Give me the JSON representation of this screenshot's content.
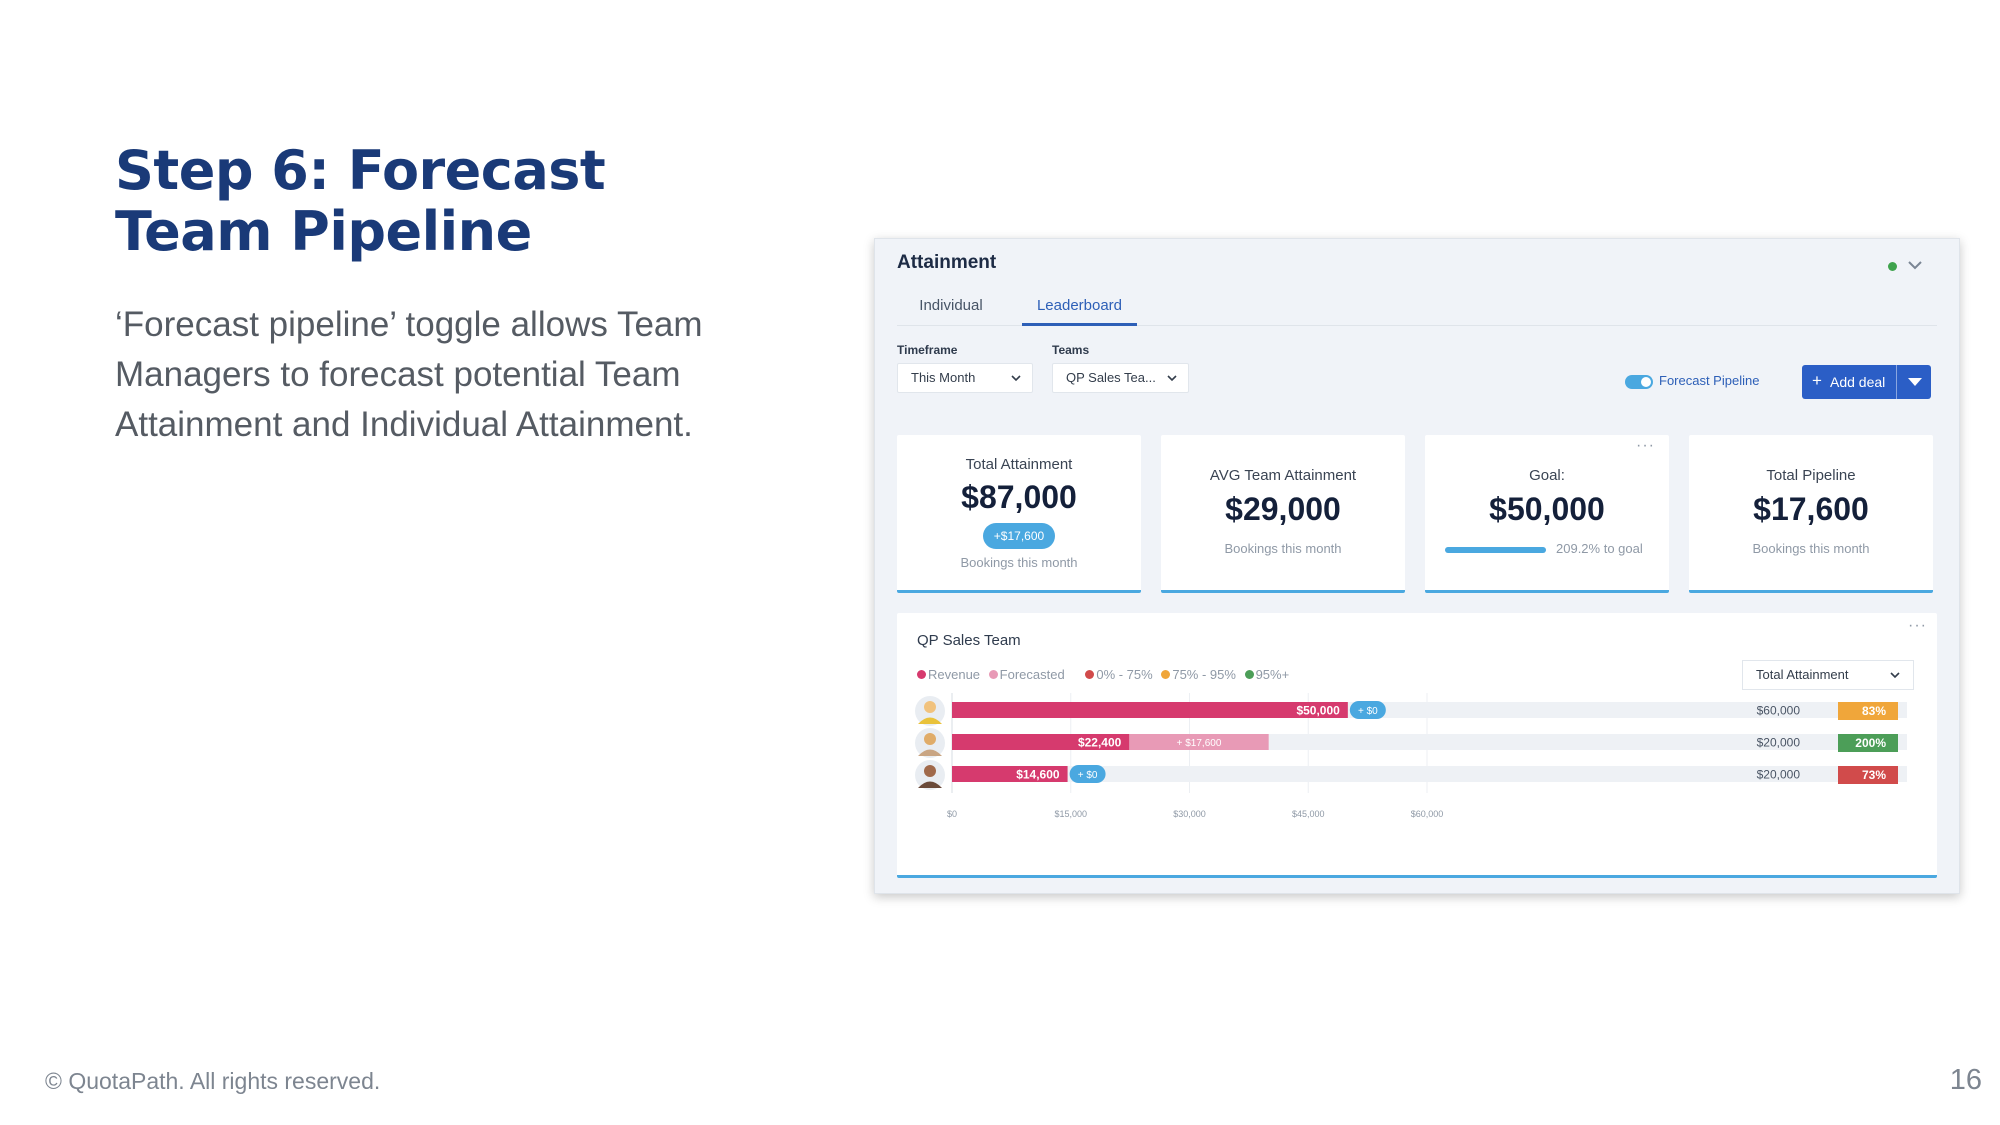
{
  "slide": {
    "title": "Step 6: Forecast Team Pipeline",
    "body": "‘Forecast pipeline’ toggle allows Team Managers to forecast potential Team Attainment and Individual Attainment.",
    "footer": "© QuotaPath. All rights reserved.",
    "page_number": "16"
  },
  "app": {
    "title": "Attainment",
    "status_color": "#3fa34d",
    "tabs": [
      {
        "label": "Individual",
        "active": false
      },
      {
        "label": "Leaderboard",
        "active": true
      }
    ],
    "filters": {
      "timeframe_label": "Timeframe",
      "timeframe_value": "This Month",
      "teams_label": "Teams",
      "teams_value": "QP Sales Tea..."
    },
    "forecast_toggle": {
      "label": "Forecast Pipeline",
      "on": true
    },
    "add_deal_label": "Add deal",
    "cards": [
      {
        "label": "Total Attainment",
        "value": "$87,000",
        "badge": "+$17,600",
        "sub": "Bookings this month"
      },
      {
        "label": "AVG Team Attainment",
        "value": "$29,000",
        "sub": "Bookings this month"
      },
      {
        "label": "Goal:",
        "value": "$50,000",
        "progress": 1.0,
        "sub": "209.2% to goal"
      },
      {
        "label": "Total Pipeline",
        "value": "$17,600",
        "sub": "Bookings this month"
      }
    ],
    "team": {
      "title": "QP Sales Team",
      "metric_select": "Total Attainment",
      "legend": [
        {
          "label": "Revenue",
          "color": "#d63a6e"
        },
        {
          "label": "Forecasted",
          "color": "#e89ab6"
        },
        {
          "label": "0% - 75%",
          "color": "#d14b4b"
        },
        {
          "label": "75% - 95%",
          "color": "#f0a63a"
        },
        {
          "label": "95%+",
          "color": "#4c9e58"
        }
      ]
    }
  },
  "chart_data": {
    "type": "bar",
    "orientation": "horizontal",
    "stacked": true,
    "xlim": [
      0,
      60000
    ],
    "x_ticks": [
      "$0",
      "$15,000",
      "$30,000",
      "$45,000",
      "$60,000"
    ],
    "x_tick_values": [
      0,
      15000,
      30000,
      45000,
      60000
    ],
    "rows": [
      {
        "avatar": "avatar-1",
        "revenue": 50000,
        "revenue_label": "$50,000",
        "forecast": 0,
        "forecast_label": "+ $0",
        "goal_label": "$60,000",
        "pct_label": "83%",
        "pct_color": "#f0a63a"
      },
      {
        "avatar": "avatar-2",
        "revenue": 22400,
        "revenue_label": "$22,400",
        "forecast": 17600,
        "forecast_label": "+ $17,600",
        "goal_label": "$20,000",
        "pct_label": "200%",
        "pct_color": "#4c9e58"
      },
      {
        "avatar": "avatar-3",
        "revenue": 14600,
        "revenue_label": "$14,600",
        "forecast": 0,
        "forecast_label": "+ $0",
        "goal_label": "$20,000",
        "pct_label": "73%",
        "pct_color": "#d14b4b"
      }
    ],
    "series": [
      {
        "name": "Revenue",
        "color": "#d63a6e"
      },
      {
        "name": "Forecasted",
        "color": "#e89ab6"
      }
    ]
  }
}
